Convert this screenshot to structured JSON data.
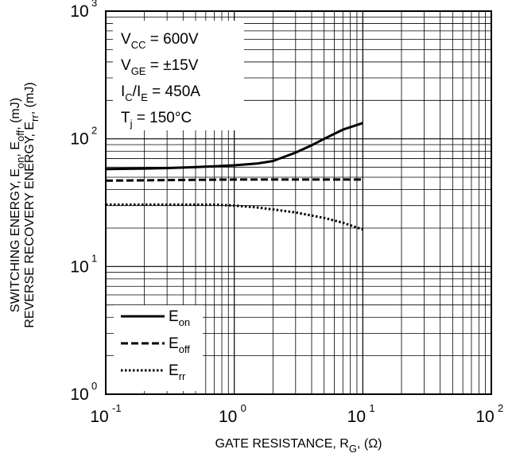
{
  "chart_data": {
    "type": "line",
    "x_scale": "log",
    "y_scale": "log",
    "xlim": [
      0.1,
      100
    ],
    "ylim": [
      1,
      1000
    ],
    "grid": true,
    "xlabel": {
      "main": "GATE RESISTANCE, R",
      "sub": "G",
      "tail": ", (Ω)"
    },
    "ylabel_lines": [
      [
        {
          "t": "SWITCHING ENERGY, E"
        },
        {
          "t": "on",
          "sub": true
        },
        {
          "t": ", E"
        },
        {
          "t": "off",
          "sub": true
        },
        {
          "t": ", (mJ)"
        }
      ],
      [
        {
          "t": "REVERSE RECOVERY ENERGY, E"
        },
        {
          "t": "rr",
          "sub": true
        },
        {
          "t": ", (mJ)"
        }
      ]
    ],
    "x_ticks": [
      {
        "value": 0.1,
        "base": "10",
        "exp": "-1"
      },
      {
        "value": 1,
        "base": "10",
        "exp": "0"
      },
      {
        "value": 10,
        "base": "10",
        "exp": "1"
      },
      {
        "value": 100,
        "base": "10",
        "exp": "2"
      }
    ],
    "y_ticks": [
      {
        "value": 1,
        "base": "10",
        "exp": "0"
      },
      {
        "value": 10,
        "base": "10",
        "exp": "1"
      },
      {
        "value": 100,
        "base": "10",
        "exp": "2"
      },
      {
        "value": 1000,
        "base": "10",
        "exp": "3"
      }
    ],
    "conditions": [
      [
        {
          "t": "V"
        },
        {
          "t": "CC",
          "sub": true
        },
        {
          "t": " = 600V"
        }
      ],
      [
        {
          "t": "V"
        },
        {
          "t": "GE",
          "sub": true
        },
        {
          "t": " = ±15V"
        }
      ],
      [
        {
          "t": "I"
        },
        {
          "t": "C",
          "sub": true
        },
        {
          "t": "/I"
        },
        {
          "t": "E",
          "sub": true
        },
        {
          "t": "  = 450A"
        }
      ],
      [
        {
          "t": "T"
        },
        {
          "t": "j",
          "sub": true
        },
        {
          "t": " = 150°C"
        }
      ]
    ],
    "series": [
      {
        "name": "E",
        "name_sub": "on",
        "dash": "solid",
        "x": [
          0.1,
          0.2,
          0.3,
          0.5,
          0.7,
          1.0,
          1.5,
          2.0,
          3.0,
          4.0,
          5.0,
          7.0,
          10.0
        ],
        "y": [
          58,
          58.5,
          59,
          60,
          61,
          62,
          64,
          67,
          78,
          89,
          100,
          118,
          133
        ]
      },
      {
        "name": "E",
        "name_sub": "off",
        "dash": "dashed",
        "x": [
          0.1,
          0.3,
          1.0,
          3.0,
          10.0
        ],
        "y": [
          47,
          47.5,
          48,
          48,
          48
        ]
      },
      {
        "name": "E",
        "name_sub": "rr",
        "dash": "dotted",
        "x": [
          0.1,
          0.2,
          0.3,
          0.5,
          0.7,
          1.0,
          1.5,
          2.0,
          3.0,
          5.0,
          7.0,
          10.0
        ],
        "y": [
          30.5,
          30.5,
          30.5,
          30.5,
          30.5,
          30,
          29,
          28,
          26.5,
          24,
          22,
          19.5
        ]
      }
    ],
    "legend_placement": "bottom-left",
    "colors": {
      "line": "#000000",
      "grid": "#000000",
      "background": "#ffffff"
    }
  }
}
